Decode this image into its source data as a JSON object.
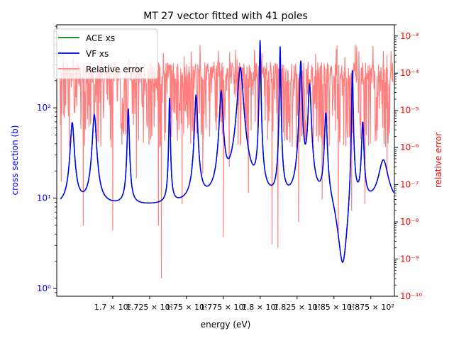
{
  "chart_data": {
    "type": "line",
    "title": "MT 27 vector fitted with 41 poles",
    "xlabel": "energy (eV)",
    "ylabel_left": "cross section (b)",
    "ylabel_right": "relative error",
    "xlim": [
      1.662,
      1.891
    ],
    "x_ticks": [
      {
        "value": 1.7,
        "label": "1.7 × 10²"
      },
      {
        "value": 1.725,
        "label": "1.725 × 10²"
      },
      {
        "value": 1.75,
        "label": "1.75 × 10²"
      },
      {
        "value": 1.775,
        "label": "1.775 × 10²"
      },
      {
        "value": 1.8,
        "label": "1.8 × 10²"
      },
      {
        "value": 1.825,
        "label": "1.825 × 10²"
      },
      {
        "value": 1.85,
        "label": "1.85 × 10²"
      },
      {
        "value": 1.875,
        "label": "1.875 × 10²"
      }
    ],
    "y_left": {
      "scale": "log",
      "lim": [
        0.82,
        830
      ],
      "ticks": [
        {
          "value": 1,
          "label": "10⁰"
        },
        {
          "value": 10,
          "label": "10¹"
        },
        {
          "value": 100,
          "label": "10²"
        }
      ],
      "color": "#0000ff"
    },
    "y_right": {
      "scale": "log",
      "lim": [
        1e-10,
        0.002
      ],
      "ticks": [
        {
          "value": 1e-10,
          "label": "10⁻¹⁰"
        },
        {
          "value": 1e-09,
          "label": "10⁻⁹"
        },
        {
          "value": 1e-08,
          "label": "10⁻⁸"
        },
        {
          "value": 1e-07,
          "label": "10⁻⁷"
        },
        {
          "value": 1e-06,
          "label": "10⁻⁶"
        },
        {
          "value": 1e-05,
          "label": "10⁻⁵"
        },
        {
          "value": 0.0001,
          "label": "10⁻⁴"
        },
        {
          "value": 0.001,
          "label": "10⁻³"
        }
      ],
      "color": "#ff0000"
    },
    "legend": {
      "placement": "upper-left",
      "entries": [
        {
          "label": "ACE xs",
          "color": "#008000"
        },
        {
          "label": "VF xs",
          "color": "#0000ff"
        },
        {
          "label": "Relative error",
          "color": "#ff7f7f"
        }
      ]
    },
    "xs_baseline": 8,
    "resonances": [
      [
        1.6725,
        60,
        0.0025
      ],
      [
        1.6875,
        75,
        0.0025
      ],
      [
        1.7105,
        90,
        0.0012
      ],
      [
        1.7385,
        120,
        0.0008
      ],
      [
        1.7565,
        130,
        0.0018
      ],
      [
        1.7735,
        140,
        0.0022
      ],
      [
        1.7865,
        270,
        0.0035
      ],
      [
        1.7999,
        550,
        0.0008
      ],
      [
        1.8135,
        470,
        0.0007
      ],
      [
        1.8275,
        320,
        0.0014
      ],
      [
        1.8335,
        170,
        0.0018
      ],
      [
        1.8445,
        80,
        0.0016
      ],
      [
        1.8625,
        350,
        0.0008
      ],
      [
        1.8695,
        60,
        0.0014
      ],
      [
        1.8835,
        18,
        0.0065
      ]
    ],
    "xs_samples": [
      [
        1.665,
        27
      ],
      [
        1.667,
        62
      ],
      [
        1.675,
        14
      ],
      [
        1.688,
        75
      ],
      [
        1.696,
        5.0
      ],
      [
        1.711,
        90
      ],
      [
        1.716,
        6.5
      ],
      [
        1.729,
        6.4
      ],
      [
        1.733,
        5.0
      ],
      [
        1.739,
        120
      ],
      [
        1.745,
        12
      ],
      [
        1.755,
        14
      ],
      [
        1.757,
        130
      ],
      [
        1.76,
        20
      ],
      [
        1.773,
        60
      ],
      [
        1.78,
        12
      ],
      [
        1.786,
        270
      ],
      [
        1.793,
        7
      ],
      [
        1.8,
        550
      ],
      [
        1.807,
        6
      ],
      [
        1.814,
        470
      ],
      [
        1.82,
        6
      ],
      [
        1.828,
        320
      ],
      [
        1.833,
        170
      ],
      [
        1.838,
        16
      ],
      [
        1.842,
        5
      ],
      [
        1.844,
        80
      ],
      [
        1.855,
        1.4
      ],
      [
        1.857,
        1.15
      ],
      [
        1.863,
        350
      ],
      [
        1.869,
        60
      ],
      [
        1.875,
        5.1
      ],
      [
        1.884,
        18
      ],
      [
        1.89,
        8
      ]
    ],
    "error_envelope": {
      "x_start": 1.664,
      "x_end": 1.89,
      "typical_range": [
        1e-06,
        0.0002
      ],
      "max": 0.0006
    },
    "error_spikes": [
      [
        1.665,
        1.2e-07
      ],
      [
        1.68,
        8e-09
      ],
      [
        1.7,
        6e-09
      ],
      [
        1.716,
        1.5e-07
      ],
      [
        1.731,
        8e-09
      ],
      [
        1.733,
        3e-10
      ],
      [
        1.747,
        3e-08
      ],
      [
        1.761,
        2e-07
      ],
      [
        1.775,
        4e-09
      ],
      [
        1.779,
        3e-07
      ],
      [
        1.792,
        6e-08
      ],
      [
        1.808,
        2.5e-09
      ],
      [
        1.812,
        2e-09
      ],
      [
        1.826,
        1e-08
      ],
      [
        1.842,
        4e-08
      ],
      [
        1.853,
        5e-09
      ],
      [
        1.862,
        2e-08
      ],
      [
        1.871,
        3e-08
      ],
      [
        1.886,
        2e-07
      ]
    ]
  }
}
